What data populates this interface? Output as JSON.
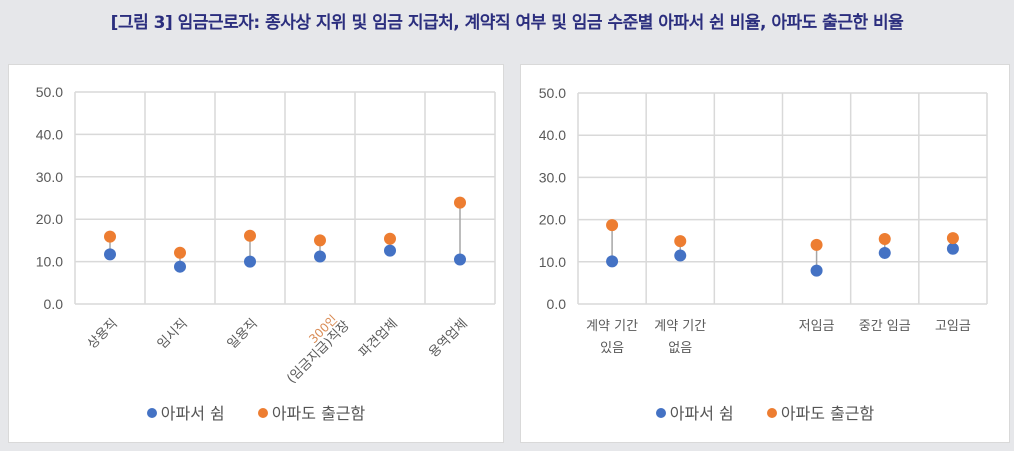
{
  "title": "[그림 3] 임금근로자: 종사상 지위 및 임금 지급처, 계약직 여부 및 임금 수준별 아파서 쉰 비율, 아파도 출근한 비율",
  "colors": {
    "series1": "#4472c4",
    "series2": "#ed7d31",
    "connector": "#a6a6a6",
    "grid": "#d9d9d9",
    "title": "#2b2e7e"
  },
  "legend": [
    "아파서 쉼",
    "아파도 출근함"
  ],
  "chart_data": [
    {
      "type": "scatter",
      "subtype": "dumbbell",
      "title": "",
      "categories": [
        "상용직",
        "임시직",
        "일용직",
        "300인 (임금지급)직장",
        "파견업체",
        "용역업체"
      ],
      "series": [
        {
          "name": "아파서 쉼",
          "values": [
            11.7,
            8.8,
            10.0,
            11.2,
            12.6,
            10.5
          ]
        },
        {
          "name": "아파도 출근함",
          "values": [
            15.9,
            12.1,
            16.1,
            15.0,
            15.4,
            23.9
          ]
        }
      ],
      "yticks": [
        "0.0",
        "10.0",
        "20.0",
        "30.0",
        "40.0",
        "50.0"
      ],
      "ylim": [
        0,
        50
      ],
      "grid": true,
      "legend_position": "bottom",
      "xlabel_rotation": -45
    },
    {
      "type": "scatter",
      "subtype": "dumbbell",
      "title": "",
      "categories": [
        "계약 기간 있음",
        "계약 기간 없음",
        "",
        "저임금",
        "중간 임금",
        "고임금"
      ],
      "series": [
        {
          "name": "아파서 쉼",
          "values": [
            10.1,
            11.5,
            null,
            7.9,
            12.1,
            13.1
          ]
        },
        {
          "name": "아파도 출근함",
          "values": [
            18.7,
            14.9,
            null,
            14.0,
            15.4,
            15.6
          ]
        }
      ],
      "yticks": [
        "0.0",
        "10.0",
        "20.0",
        "30.0",
        "40.0",
        "50.0"
      ],
      "ylim": [
        0,
        50
      ],
      "grid": true,
      "legend_position": "bottom"
    }
  ]
}
